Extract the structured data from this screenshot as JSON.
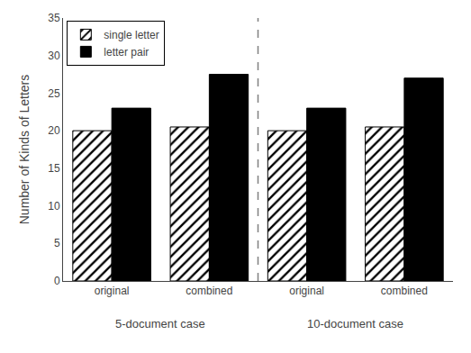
{
  "chart_data": {
    "type": "bar",
    "ylabel": "Number of Kinds of Letters",
    "categories": [
      [
        "5-document case",
        "original"
      ],
      [
        "5-document case",
        "combined"
      ],
      [
        "10-document case",
        "original"
      ],
      [
        "10-document case",
        "combined"
      ]
    ],
    "series": [
      {
        "name": "single letter",
        "color": "white",
        "marker": "hatched",
        "values": [
          20.0,
          20.5,
          20.0,
          20.5
        ]
      },
      {
        "name": "letter pair",
        "color": "black",
        "values": [
          23.0,
          27.5,
          23.0,
          27.0
        ]
      }
    ],
    "ylim": [
      0,
      35
    ],
    "yticks": [
      0,
      5,
      10,
      15,
      20,
      25,
      30,
      35
    ],
    "grid": false,
    "legend": "upper left"
  }
}
